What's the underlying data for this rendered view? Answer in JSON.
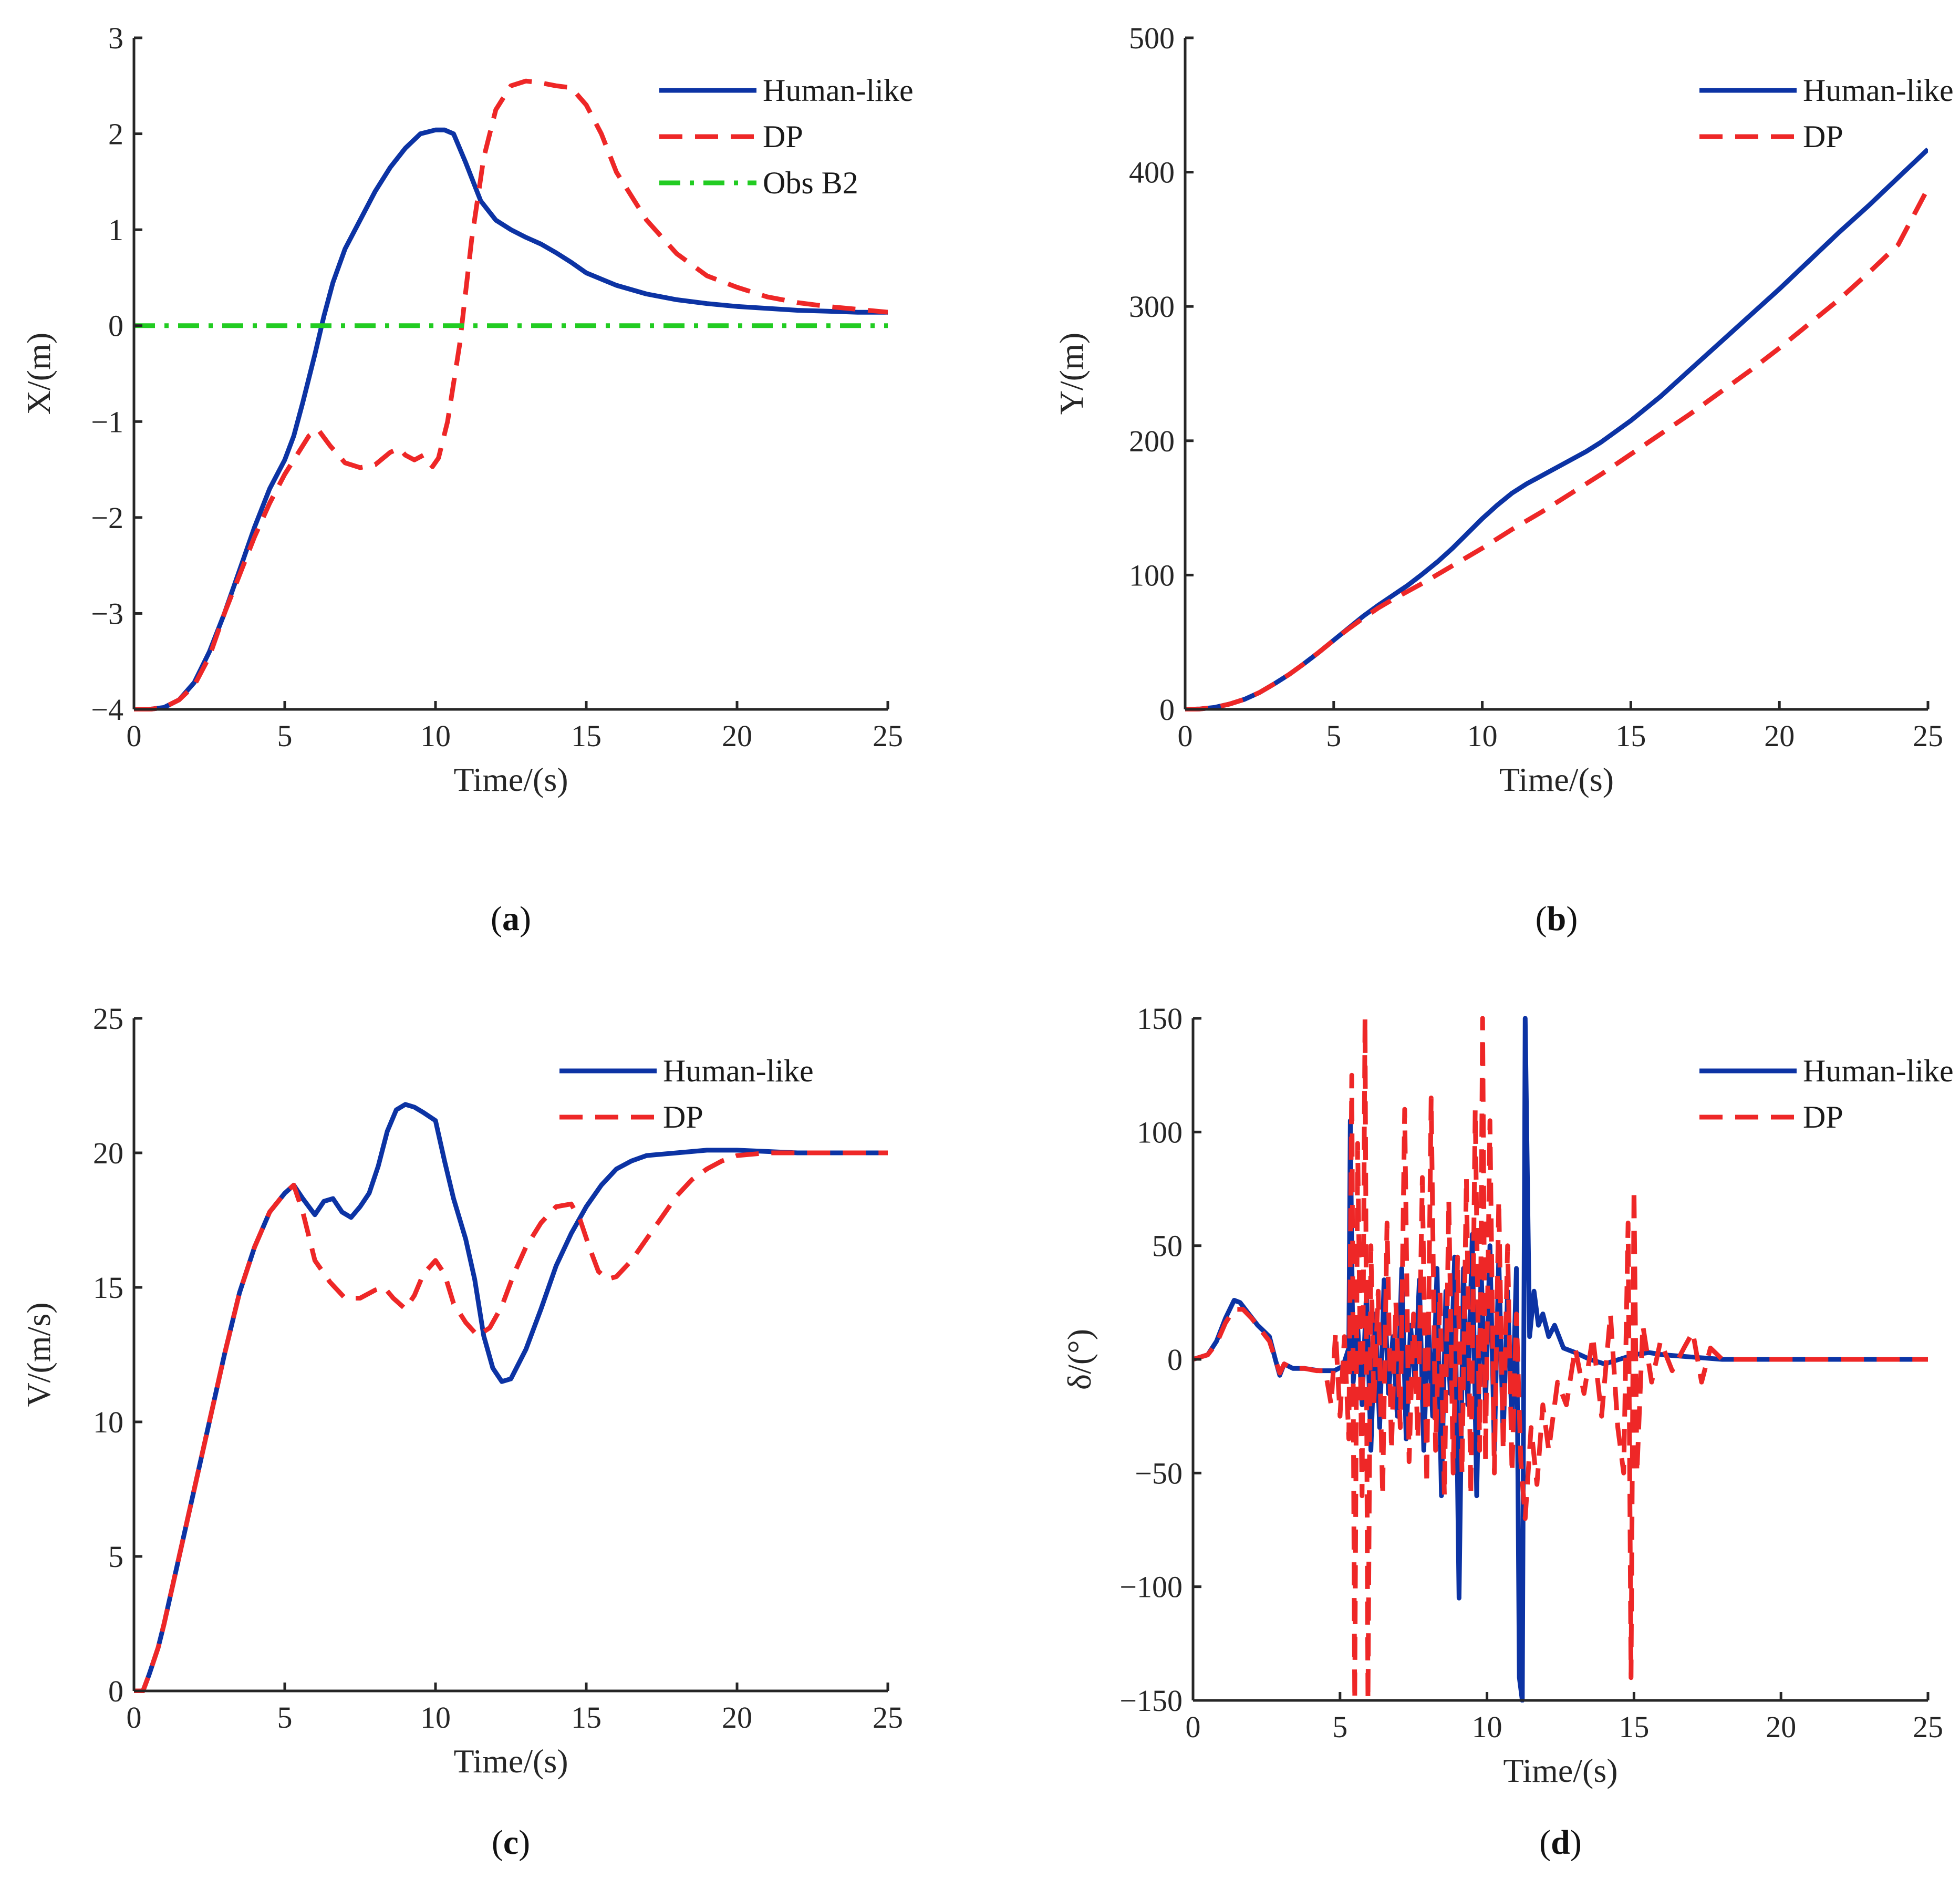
{
  "colors": {
    "human": "#0c33a4",
    "dp": "#ee2727",
    "obs": "#22cc22",
    "axis": "#262626"
  },
  "chart_data": [
    {
      "id": "a",
      "type": "line",
      "caption": "a",
      "xlabel": "Time/(s)",
      "ylabel": "X/(m)",
      "xlim": [
        0,
        25
      ],
      "ylim": [
        -4,
        3
      ],
      "xticks": [
        0,
        5,
        10,
        15,
        20,
        25
      ],
      "yticks": [
        -4,
        -3,
        -2,
        -1,
        0,
        1,
        2,
        3
      ],
      "ytick_labels": [
        "−4",
        "−3",
        "−2",
        "−1",
        "0",
        "1",
        "2",
        "3"
      ],
      "legend": {
        "position": "top-right"
      },
      "series": [
        {
          "name": "Human-like",
          "style": "solid",
          "color": "#0c33a4",
          "x": [
            0,
            0.5,
            1,
            1.5,
            2,
            2.5,
            3,
            3.5,
            4,
            4.5,
            5,
            5.3,
            5.6,
            6,
            6.3,
            6.6,
            7,
            7.5,
            8,
            8.5,
            9,
            9.5,
            10,
            10.3,
            10.6,
            11,
            11.5,
            12,
            12.5,
            13,
            13.5,
            14,
            14.5,
            15,
            16,
            17,
            18,
            19,
            20,
            21,
            22,
            23,
            24,
            25
          ],
          "y": [
            -4,
            -4,
            -3.98,
            -3.9,
            -3.72,
            -3.4,
            -3.0,
            -2.55,
            -2.1,
            -1.7,
            -1.4,
            -1.15,
            -0.8,
            -0.3,
            0.1,
            0.45,
            0.8,
            1.1,
            1.4,
            1.65,
            1.85,
            2.0,
            2.04,
            2.04,
            2.0,
            1.7,
            1.3,
            1.1,
            1.0,
            0.92,
            0.85,
            0.76,
            0.66,
            0.55,
            0.42,
            0.33,
            0.27,
            0.23,
            0.2,
            0.18,
            0.16,
            0.15,
            0.14,
            0.14
          ]
        },
        {
          "name": "DP",
          "style": "dashed",
          "color": "#ee2727",
          "x": [
            0,
            0.5,
            1,
            1.5,
            2,
            2.5,
            3,
            3.5,
            4,
            4.5,
            5,
            5.5,
            5.8,
            6.1,
            6.5,
            7,
            7.5,
            8,
            8.5,
            8.8,
            9,
            9.3,
            9.6,
            9.9,
            10.1,
            10.4,
            10.8,
            11.2,
            11.6,
            12,
            12.5,
            13,
            13.5,
            14,
            14.5,
            15,
            15.5,
            16,
            17,
            18,
            19,
            20,
            21,
            22,
            23,
            24,
            25
          ],
          "y": [
            -4,
            -4,
            -3.98,
            -3.9,
            -3.75,
            -3.45,
            -3.0,
            -2.6,
            -2.2,
            -1.85,
            -1.55,
            -1.3,
            -1.15,
            -1.08,
            -1.25,
            -1.43,
            -1.48,
            -1.45,
            -1.32,
            -1.28,
            -1.35,
            -1.4,
            -1.35,
            -1.47,
            -1.38,
            -1.0,
            -0.2,
            0.9,
            1.75,
            2.25,
            2.5,
            2.55,
            2.53,
            2.5,
            2.48,
            2.3,
            2.0,
            1.6,
            1.1,
            0.75,
            0.52,
            0.4,
            0.3,
            0.24,
            0.2,
            0.17,
            0.14
          ]
        },
        {
          "name": "Obs B2",
          "style": "dashdot",
          "color": "#22cc22",
          "x": [
            0,
            25
          ],
          "y": [
            0,
            0
          ]
        }
      ]
    },
    {
      "id": "b",
      "type": "line",
      "caption": "b",
      "xlabel": "Time/(s)",
      "ylabel": "Y/(m)",
      "xlim": [
        0,
        25
      ],
      "ylim": [
        0,
        500
      ],
      "xticks": [
        0,
        5,
        10,
        15,
        20,
        25
      ],
      "yticks": [
        0,
        100,
        200,
        300,
        400,
        500
      ],
      "ytick_labels": [
        "0",
        "100",
        "200",
        "300",
        "400",
        "500"
      ],
      "legend": {
        "position": "top-right"
      },
      "series": [
        {
          "name": "Human-like",
          "style": "solid",
          "color": "#0c33a4",
          "x": [
            0,
            0.5,
            1,
            1.5,
            2,
            2.5,
            3,
            3.5,
            4,
            4.5,
            5,
            5.5,
            6,
            6.5,
            7,
            7.5,
            8,
            8.5,
            9,
            9.5,
            10,
            10.5,
            11,
            11.5,
            12,
            12.5,
            13,
            13.5,
            14,
            15,
            16,
            17,
            18,
            19,
            20,
            21,
            22,
            23,
            24,
            25
          ],
          "y": [
            0,
            0.3,
            1.5,
            4,
            7.5,
            12.5,
            19,
            26,
            34,
            42.5,
            51.5,
            60.5,
            69.5,
            77.5,
            85,
            92.5,
            101,
            110,
            120,
            131,
            142,
            152,
            161,
            168,
            174,
            180,
            186,
            192,
            199,
            215,
            233,
            253,
            273,
            293,
            313,
            334,
            355,
            375,
            396,
            417
          ]
        },
        {
          "name": "DP",
          "style": "dashed",
          "color": "#ee2727",
          "x": [
            0,
            0.5,
            1,
            1.5,
            2,
            2.5,
            3,
            3.5,
            4,
            4.5,
            5,
            5.5,
            6,
            6.5,
            7,
            7.5,
            8,
            9,
            10,
            11,
            12,
            13,
            14,
            15,
            16,
            17,
            18,
            19,
            20,
            21,
            22,
            23,
            24,
            25
          ],
          "y": [
            0,
            0.3,
            1.5,
            4,
            7.5,
            12.5,
            19,
            26,
            34,
            42.5,
            51.5,
            60,
            68,
            75.5,
            82,
            88,
            94,
            107,
            120,
            134,
            147,
            161,
            175,
            190,
            205,
            220,
            236,
            252,
            269,
            287,
            305,
            325,
            346,
            388
          ]
        }
      ]
    },
    {
      "id": "c",
      "type": "line",
      "caption": "c",
      "xlabel": "Time/(s)",
      "ylabel": "V/(m/s)",
      "xlim": [
        0,
        25
      ],
      "ylim": [
        0,
        25
      ],
      "xticks": [
        0,
        5,
        10,
        15,
        20,
        25
      ],
      "yticks": [
        0,
        5,
        10,
        15,
        20,
        25
      ],
      "ytick_labels": [
        "0",
        "5",
        "10",
        "15",
        "20",
        "25"
      ],
      "legend": {
        "position": "top-right"
      },
      "series": [
        {
          "name": "Human-like",
          "style": "solid",
          "color": "#0c33a4",
          "x": [
            0,
            0.3,
            0.5,
            0.8,
            1,
            1.5,
            2,
            2.5,
            3,
            3.5,
            4,
            4.5,
            5,
            5.3,
            5.6,
            6,
            6.3,
            6.6,
            6.9,
            7.2,
            7.5,
            7.8,
            8.1,
            8.4,
            8.7,
            9,
            9.3,
            9.6,
            10,
            10.3,
            10.6,
            11,
            11.3,
            11.6,
            11.9,
            12.2,
            12.5,
            13,
            13.5,
            14,
            14.5,
            15,
            15.5,
            16,
            16.5,
            17,
            18,
            19,
            20,
            21,
            22,
            23,
            24,
            25
          ],
          "y": [
            0,
            0,
            0.6,
            1.6,
            2.5,
            5,
            7.5,
            10,
            12.5,
            14.8,
            16.5,
            17.8,
            18.5,
            18.8,
            18.3,
            17.7,
            18.2,
            18.3,
            17.8,
            17.6,
            18.0,
            18.5,
            19.5,
            20.8,
            21.6,
            21.8,
            21.7,
            21.5,
            21.2,
            19.7,
            18.3,
            16.8,
            15.3,
            13.2,
            12.0,
            11.5,
            11.6,
            12.7,
            14.2,
            15.8,
            17.0,
            18.0,
            18.8,
            19.4,
            19.7,
            19.9,
            20.0,
            20.1,
            20.1,
            20.05,
            20.0,
            20.0,
            20.0,
            20.0
          ]
        },
        {
          "name": "DP",
          "style": "dashed",
          "color": "#ee2727",
          "x": [
            0,
            0.3,
            0.5,
            0.8,
            1,
            1.5,
            2,
            2.5,
            3,
            3.5,
            4,
            4.5,
            5,
            5.3,
            5.6,
            6,
            6.5,
            7,
            7.5,
            8,
            8.3,
            8.6,
            9,
            9.3,
            9.6,
            10,
            10.3,
            10.6,
            11,
            11.4,
            11.8,
            12.2,
            12.6,
            13,
            13.5,
            14,
            14.5,
            14.8,
            15.1,
            15.4,
            15.7,
            16,
            16.5,
            17,
            17.5,
            18,
            18.5,
            19,
            19.5,
            20,
            21,
            22,
            23,
            24,
            25
          ],
          "y": [
            0,
            0,
            0.6,
            1.6,
            2.5,
            5,
            7.5,
            10,
            12.5,
            14.8,
            16.5,
            17.8,
            18.5,
            18.8,
            17.8,
            16.0,
            15.2,
            14.6,
            14.6,
            14.9,
            15.0,
            14.6,
            14.2,
            14.7,
            15.5,
            16.0,
            15.5,
            14.4,
            13.7,
            13.2,
            13.5,
            14.3,
            15.5,
            16.5,
            17.4,
            18.0,
            18.1,
            17.5,
            16.5,
            15.6,
            15.3,
            15.4,
            16.0,
            16.8,
            17.6,
            18.4,
            19.0,
            19.4,
            19.7,
            19.9,
            20.0,
            20.0,
            20.0,
            20.0,
            20.0
          ]
        }
      ]
    },
    {
      "id": "d",
      "type": "line",
      "caption": "d",
      "xlabel": "Time/(s)",
      "ylabel": "δ/(°)",
      "xlim": [
        0,
        25
      ],
      "ylim": [
        -150,
        150
      ],
      "xticks": [
        0,
        5,
        10,
        15,
        20,
        25
      ],
      "yticks": [
        -150,
        -100,
        -50,
        0,
        50,
        100,
        150
      ],
      "ytick_labels": [
        "−150",
        "−100",
        "−50",
        "0",
        "50",
        "100",
        "150"
      ],
      "legend": {
        "position": "top-right"
      },
      "series": [
        {
          "name": "Human-like",
          "style": "solid",
          "color": "#0c33a4",
          "x": [
            0,
            0.5,
            0.8,
            1.1,
            1.4,
            1.6,
            1.9,
            2.2,
            2.6,
            2.8,
            2.95,
            3.1,
            3.4,
            3.8,
            4.3,
            4.8,
            5.1,
            5.3,
            5.35,
            5.45,
            5.6,
            5.75,
            5.9,
            6.05,
            6.2,
            6.35,
            6.5,
            6.65,
            6.8,
            6.95,
            7.1,
            7.25,
            7.4,
            7.55,
            7.7,
            7.85,
            8.0,
            8.15,
            8.3,
            8.45,
            8.6,
            8.75,
            8.9,
            9.05,
            9.2,
            9.35,
            9.5,
            9.65,
            9.8,
            9.95,
            10.1,
            10.25,
            10.4,
            10.55,
            10.7,
            10.85,
            11.0,
            11.1,
            11.2,
            11.3,
            11.45,
            11.6,
            11.75,
            11.9,
            12.1,
            12.3,
            12.6,
            13.0,
            13.5,
            14.0,
            14.5,
            15.0,
            15.5,
            16.0,
            17.0,
            18.0,
            19.0,
            20.0,
            21.0,
            22.0,
            23.0,
            24.0,
            25.0
          ],
          "y": [
            0,
            2,
            8,
            18,
            26,
            25,
            20,
            15,
            10,
            0,
            -7,
            -2,
            -4,
            -4,
            -5,
            -5,
            -3,
            5,
            105,
            -10,
            15,
            -20,
            30,
            -40,
            20,
            -30,
            35,
            -15,
            10,
            -25,
            40,
            -35,
            15,
            -10,
            35,
            -40,
            18,
            -25,
            40,
            -60,
            30,
            -15,
            45,
            -105,
            40,
            -20,
            55,
            -60,
            40,
            -20,
            50,
            -40,
            45,
            -35,
            30,
            -30,
            40,
            -140,
            -150,
            150,
            10,
            30,
            15,
            20,
            10,
            15,
            5,
            3,
            0,
            -2,
            0,
            2,
            3,
            2,
            1,
            0,
            0,
            0,
            0,
            0,
            0,
            0,
            0
          ]
        },
        {
          "name": "DP",
          "style": "dashed",
          "color": "#ee2727",
          "x": [
            0,
            0.5,
            0.8,
            1.1,
            1.4,
            1.7,
            2.0,
            2.3,
            2.6,
            2.8,
            2.95,
            3.1,
            3.4,
            3.8,
            4.2,
            4.5,
            4.7,
            4.85,
            5.0,
            5.15,
            5.3,
            5.4,
            5.5,
            5.6,
            5.75,
            5.85,
            5.95,
            6.05,
            6.15,
            6.3,
            6.45,
            6.6,
            6.75,
            6.9,
            7.05,
            7.2,
            7.35,
            7.5,
            7.65,
            7.8,
            7.95,
            8.1,
            8.25,
            8.4,
            8.55,
            8.7,
            8.85,
            9.0,
            9.15,
            9.3,
            9.45,
            9.6,
            9.75,
            9.85,
            9.95,
            10.1,
            10.25,
            10.4,
            10.55,
            10.7,
            10.85,
            11.0,
            11.15,
            11.3,
            11.5,
            11.7,
            11.9,
            12.1,
            12.4,
            12.7,
            13.0,
            13.3,
            13.6,
            13.9,
            14.2,
            14.45,
            14.65,
            14.8,
            14.9,
            15.0,
            15.1,
            15.3,
            15.6,
            15.9,
            16.3,
            16.7,
            17.0,
            17.3,
            17.6,
            18.0,
            19.0,
            20.0,
            21.0,
            22.0,
            23.0,
            24.0,
            25.0
          ],
          "y": [
            0,
            2,
            7,
            16,
            22,
            22,
            18,
            13,
            8,
            0,
            -6,
            -2,
            -4,
            -4,
            -5,
            -5,
            -20,
            12,
            -25,
            10,
            -35,
            125,
            -150,
            95,
            -60,
            150,
            -150,
            50,
            -20,
            30,
            -60,
            60,
            -40,
            25,
            -30,
            110,
            -45,
            20,
            -35,
            80,
            -55,
            115,
            -40,
            30,
            -60,
            70,
            -50,
            45,
            -50,
            80,
            -60,
            110,
            -40,
            150,
            -45,
            105,
            -50,
            70,
            -40,
            50,
            -50,
            20,
            -45,
            -70,
            -30,
            -55,
            -20,
            -40,
            -10,
            -20,
            5,
            -15,
            10,
            -25,
            20,
            -30,
            -50,
            60,
            -140,
            75,
            -50,
            15,
            -10,
            8,
            -5,
            5,
            12,
            -10,
            5,
            0,
            0,
            0,
            0,
            0,
            0,
            0,
            0
          ]
        }
      ]
    }
  ]
}
